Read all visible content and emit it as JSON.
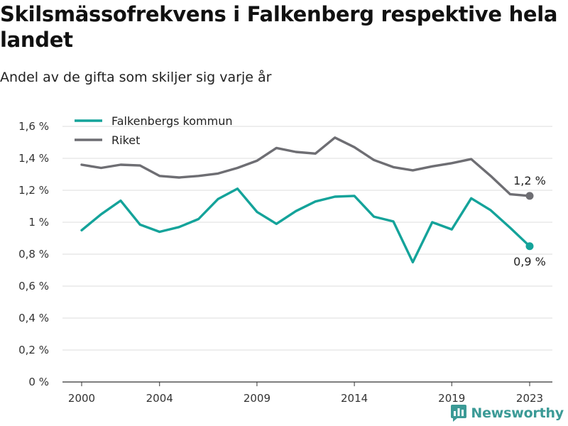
{
  "title": "Skilsmässofrekvens i Falkenberg respektive hela landet",
  "subtitle": "Andel av de gifta som skiljer sig varje år",
  "brand": "Newsworthy",
  "colors": {
    "falkenberg": "#14a39a",
    "riket": "#6e6e73",
    "grid": "#dcdcdc",
    "axis": "#333333"
  },
  "chart_data": {
    "type": "line",
    "x": [
      2000,
      2001,
      2002,
      2003,
      2004,
      2005,
      2006,
      2007,
      2008,
      2009,
      2010,
      2011,
      2012,
      2013,
      2014,
      2015,
      2016,
      2017,
      2018,
      2019,
      2020,
      2021,
      2022,
      2023
    ],
    "series": [
      {
        "name": "Falkenbergs kommun",
        "color": "#14a39a",
        "values": [
          0.95,
          1.05,
          1.135,
          0.985,
          0.94,
          0.97,
          1.02,
          1.145,
          1.21,
          1.065,
          0.99,
          1.07,
          1.13,
          1.16,
          1.165,
          1.035,
          1.005,
          0.75,
          1.0,
          0.955,
          1.15,
          1.075,
          0.965,
          0.85
        ],
        "end_label": "0,9 %"
      },
      {
        "name": "Riket",
        "color": "#6e6e73",
        "values": [
          1.36,
          1.34,
          1.36,
          1.355,
          1.29,
          1.28,
          1.29,
          1.305,
          1.34,
          1.385,
          1.465,
          1.44,
          1.43,
          1.53,
          1.47,
          1.39,
          1.345,
          1.325,
          1.35,
          1.37,
          1.395,
          1.29,
          1.175,
          1.165
        ],
        "end_label": "1,2 %"
      }
    ],
    "x_ticks": [
      2000,
      2004,
      2009,
      2014,
      2019,
      2023
    ],
    "y_ticks": [
      0,
      0.2,
      0.4,
      0.6,
      0.8,
      1.0,
      1.2,
      1.4,
      1.6
    ],
    "y_tick_labels": [
      "0 %",
      "0,2 %",
      "0,4 %",
      "0,6 %",
      "0,8 %",
      "1 %",
      "1,2 %",
      "1,4 %",
      "1,6 %"
    ],
    "ylim": [
      0,
      1.6
    ],
    "xlim": [
      2000,
      2023
    ],
    "grid": "horizontal",
    "legend_position": "top-left",
    "xlabel": "",
    "ylabel": ""
  }
}
